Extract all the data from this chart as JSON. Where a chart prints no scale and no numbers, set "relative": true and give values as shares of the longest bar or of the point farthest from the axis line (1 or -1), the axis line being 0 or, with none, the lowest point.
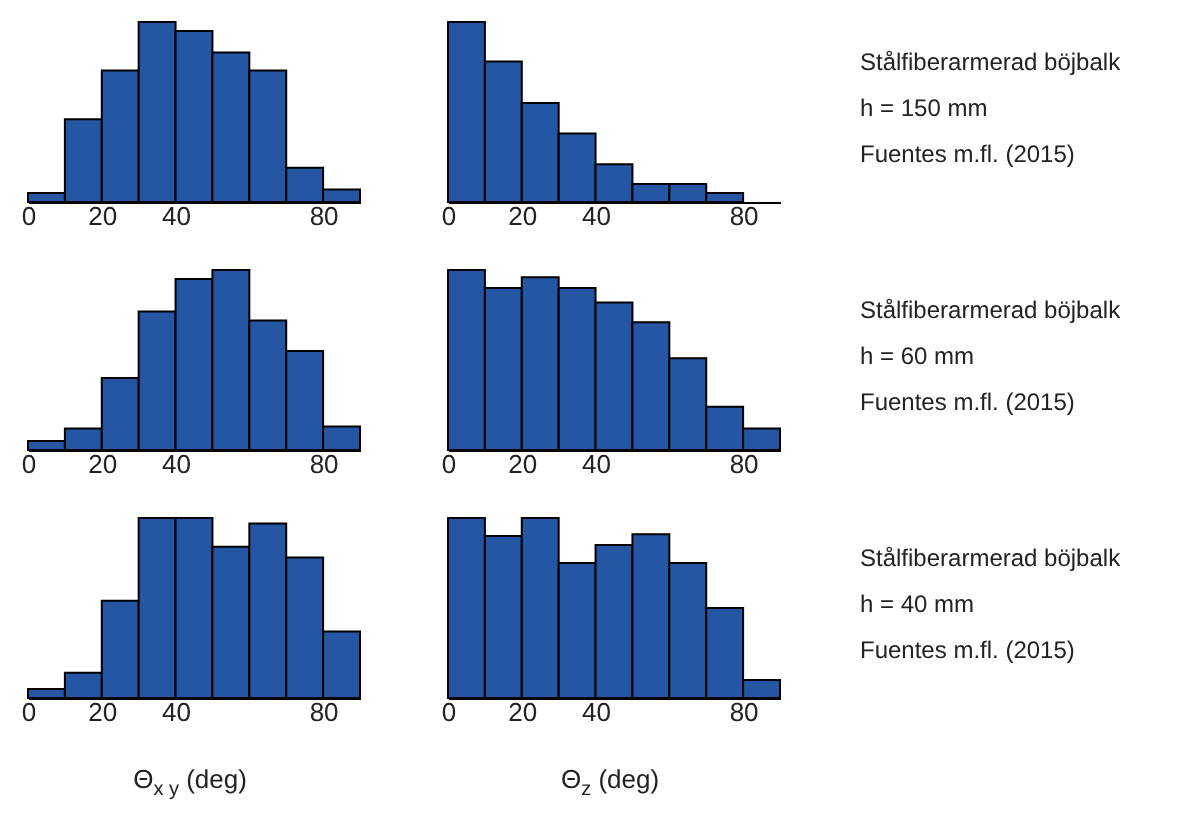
{
  "chart_data": [
    {
      "type": "bar",
      "relative": true,
      "x": [
        5,
        15,
        25,
        35,
        45,
        55,
        65,
        75,
        85
      ],
      "values": [
        0.05,
        0.46,
        0.73,
        1,
        0.95,
        0.83,
        0.73,
        0.19,
        0.07
      ],
      "color": "#2456a4",
      "xlim": [
        0,
        90
      ],
      "xticks": [
        0,
        20,
        40,
        80
      ],
      "grid": false
    },
    {
      "type": "bar",
      "relative": true,
      "x": [
        5,
        15,
        25,
        35,
        45,
        55,
        65,
        75,
        85
      ],
      "values": [
        1,
        0.78,
        0.55,
        0.38,
        0.21,
        0.1,
        0.1,
        0.05,
        0
      ],
      "color": "#2456a4",
      "xlim": [
        0,
        90
      ],
      "xticks": [
        0,
        20,
        40,
        80
      ],
      "grid": false
    },
    {
      "type": "other",
      "annotations": [
        "Stålfiberarmerad böjbalk",
        "h = 150 mm",
        "Fuentes m.fl. (2015)"
      ]
    },
    {
      "type": "bar",
      "relative": true,
      "x": [
        5,
        15,
        25,
        35,
        45,
        55,
        65,
        75,
        85
      ],
      "values": [
        0.05,
        0.12,
        0.4,
        0.77,
        0.95,
        1,
        0.72,
        0.55,
        0.13
      ],
      "color": "#2456a4",
      "xlim": [
        0,
        90
      ],
      "xticks": [
        0,
        20,
        40,
        80
      ],
      "grid": false
    },
    {
      "type": "bar",
      "relative": true,
      "x": [
        5,
        15,
        25,
        35,
        45,
        55,
        65,
        75,
        85
      ],
      "values": [
        1,
        0.9,
        0.96,
        0.9,
        0.82,
        0.71,
        0.51,
        0.24,
        0.12
      ],
      "color": "#2456a4",
      "xlim": [
        0,
        90
      ],
      "xticks": [
        0,
        20,
        40,
        80
      ],
      "grid": false
    },
    {
      "type": "other",
      "annotations": [
        "Stålfiberarmerad böjbalk",
        "h = 60 mm",
        "Fuentes m.fl. (2015)"
      ]
    },
    {
      "type": "bar",
      "relative": true,
      "x": [
        5,
        15,
        25,
        35,
        45,
        55,
        65,
        75,
        85
      ],
      "values": [
        0.05,
        0.14,
        0.54,
        1,
        1,
        0.84,
        0.97,
        0.78,
        0.37
      ],
      "color": "#2456a4",
      "xlim": [
        0,
        90
      ],
      "xticks": [
        0,
        20,
        40,
        80
      ],
      "grid": false,
      "xlabel": "Θ$_{x y}$ (deg)"
    },
    {
      "type": "bar",
      "relative": true,
      "x": [
        5,
        15,
        25,
        35,
        45,
        55,
        65,
        75,
        85
      ],
      "values": [
        1,
        0.9,
        1,
        0.75,
        0.85,
        0.91,
        0.75,
        0.5,
        0.1
      ],
      "color": "#2456a4",
      "xlim": [
        0,
        90
      ],
      "xticks": [
        0,
        20,
        40,
        80
      ],
      "grid": false,
      "xlabel": "Θ$_{z}$ (deg)"
    },
    {
      "type": "other",
      "annotations": [
        "Stålfiberarmerad böjbalk",
        "h = 40 mm",
        "Fuentes m.fl. (2015)"
      ]
    }
  ]
}
